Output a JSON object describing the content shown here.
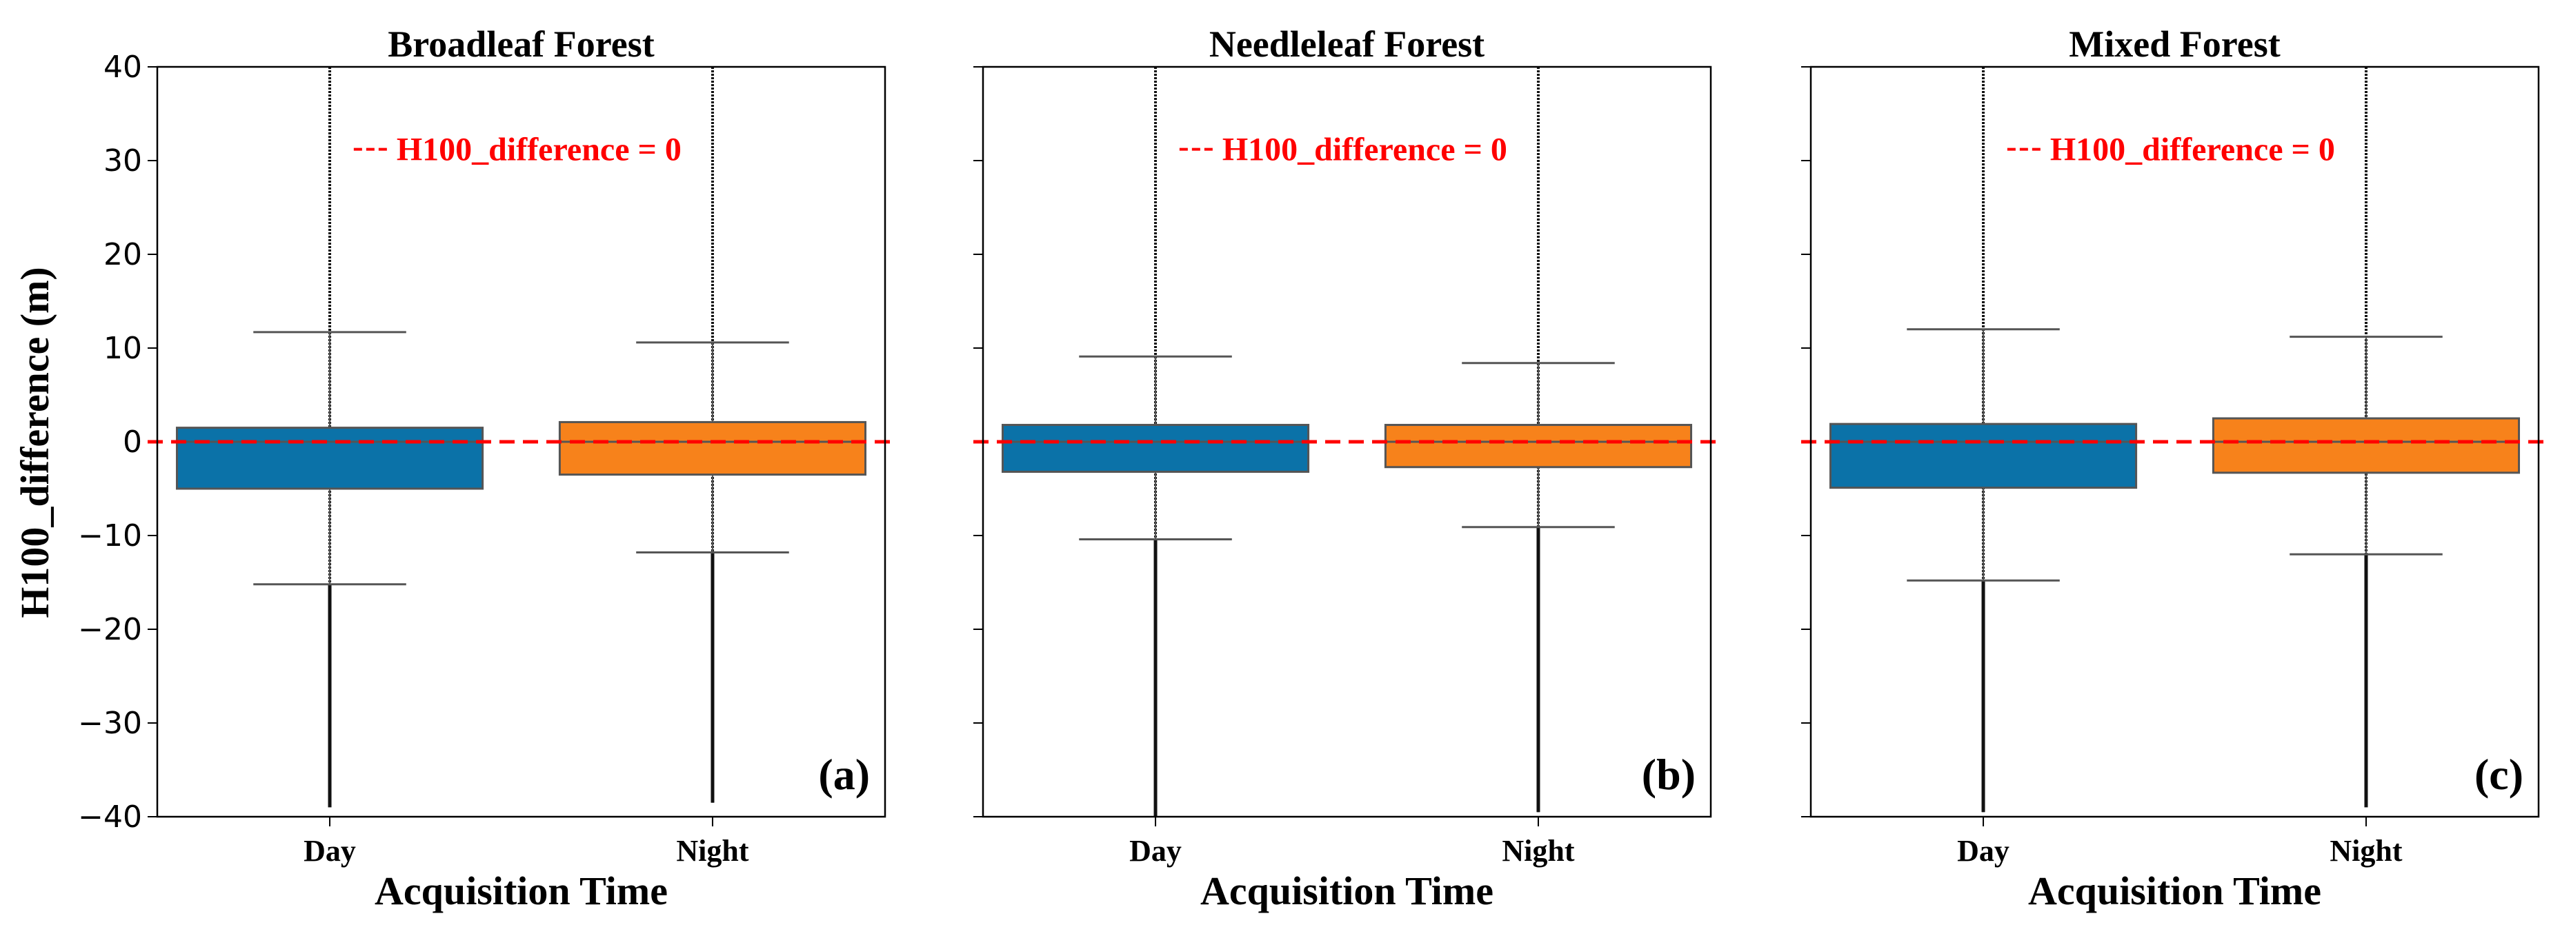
{
  "figure": {
    "ylabel": "H100_difference (m)",
    "yticks": [
      40,
      30,
      20,
      10,
      0,
      -10,
      -20,
      -30,
      -40
    ]
  },
  "chart_data": [
    {
      "type": "box",
      "title": "Broadleaf Forest",
      "panel_label": "(a)",
      "xlabel": "Acquisition Time",
      "ylabel": "H100_difference (m)",
      "ylim": [
        -40,
        40
      ],
      "grid": false,
      "reference_line": {
        "y": 0,
        "label": "H100_difference = 0",
        "color": "#ff0000",
        "style": "dashed"
      },
      "categories": [
        "Day",
        "Night"
      ],
      "boxes": [
        {
          "category": "Day",
          "color": "#0b72a8",
          "whisker_low": -15.2,
          "q1": -5.0,
          "median": 0.0,
          "q3": 1.5,
          "whisker_high": 11.7,
          "outlier_min": -39.0,
          "outlier_max": 40.0
        },
        {
          "category": "Night",
          "color": "#f7821b",
          "whisker_low": -11.8,
          "q1": -3.5,
          "median": 0.0,
          "q3": 2.1,
          "whisker_high": 10.6,
          "outlier_min": -38.5,
          "outlier_max": 40.0
        }
      ]
    },
    {
      "type": "box",
      "title": "Needleleaf Forest",
      "panel_label": "(b)",
      "xlabel": "Acquisition Time",
      "ylabel": "",
      "ylim": [
        -40,
        40
      ],
      "grid": false,
      "reference_line": {
        "y": 0,
        "label": "H100_difference = 0",
        "color": "#ff0000",
        "style": "dashed"
      },
      "categories": [
        "Day",
        "Night"
      ],
      "boxes": [
        {
          "category": "Day",
          "color": "#0b72a8",
          "whisker_low": -10.4,
          "q1": -3.2,
          "median": 0.0,
          "q3": 1.8,
          "whisker_high": 9.1,
          "outlier_min": -40.0,
          "outlier_max": 40.0
        },
        {
          "category": "Night",
          "color": "#f7821b",
          "whisker_low": -9.1,
          "q1": -2.7,
          "median": 0.0,
          "q3": 1.8,
          "whisker_high": 8.4,
          "outlier_min": -39.5,
          "outlier_max": 40.0
        }
      ]
    },
    {
      "type": "box",
      "title": "Mixed Forest",
      "panel_label": "(c)",
      "xlabel": "Acquisition Time",
      "ylabel": "",
      "ylim": [
        -40,
        40
      ],
      "grid": false,
      "reference_line": {
        "y": 0,
        "label": "H100_difference = 0",
        "color": "#ff0000",
        "style": "dashed"
      },
      "categories": [
        "Day",
        "Night"
      ],
      "boxes": [
        {
          "category": "Day",
          "color": "#0b72a8",
          "whisker_low": -14.8,
          "q1": -4.9,
          "median": 0.0,
          "q3": 1.9,
          "whisker_high": 12.0,
          "outlier_min": -39.5,
          "outlier_max": 40.0
        },
        {
          "category": "Night",
          "color": "#f7821b",
          "whisker_low": -12.0,
          "q1": -3.3,
          "median": 0.0,
          "q3": 2.5,
          "whisker_high": 11.2,
          "outlier_min": -39.0,
          "outlier_max": 40.0
        }
      ]
    }
  ]
}
